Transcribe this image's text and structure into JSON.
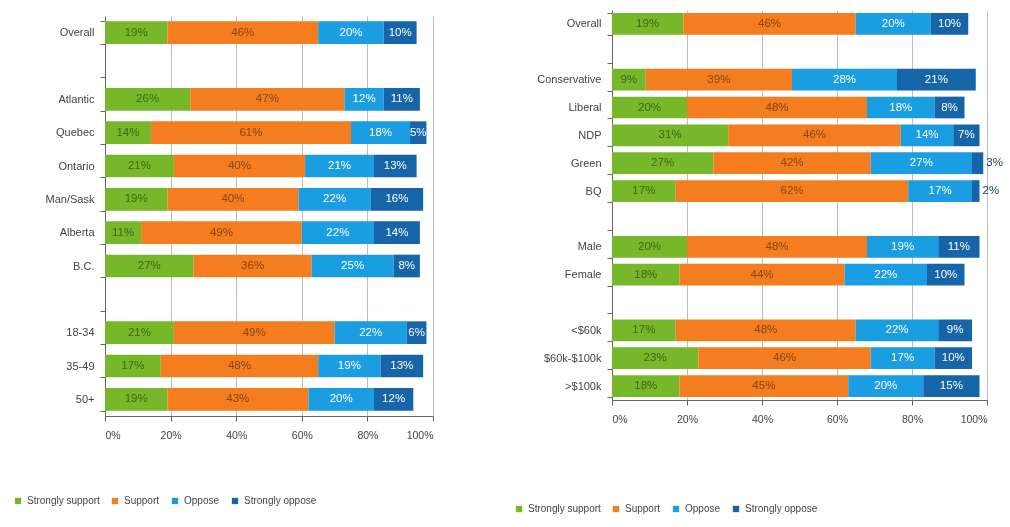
{
  "chart_data": [
    {
      "type": "bar",
      "orientation": "horizontal",
      "stacked": true,
      "categories": [
        "Overall",
        null,
        "Atlantic",
        "Quebec",
        "Ontario",
        "Man/Sask",
        "Alberta",
        "B.C.",
        null,
        "18-34",
        "35-49",
        "50+"
      ],
      "series": [
        {
          "name": "Strongly support",
          "color": "#77b82a",
          "values": [
            19,
            null,
            26,
            14,
            21,
            19,
            11,
            27,
            null,
            21,
            17,
            19
          ],
          "value_labels": [
            "19%",
            null,
            "26%",
            "14%",
            "21%",
            "19%",
            "11%",
            "27%",
            null,
            "21%",
            "17%",
            "19%"
          ]
        },
        {
          "name": "Support",
          "color": "#f47d20",
          "values": [
            46,
            null,
            47,
            61,
            40,
            40,
            49,
            36,
            null,
            49,
            48,
            43
          ],
          "value_labels": [
            "46%",
            null,
            "47%",
            "61%",
            "40%",
            "40%",
            "49%",
            "36%",
            null,
            "49%",
            "48%",
            "43%"
          ]
        },
        {
          "name": "Oppose",
          "color": "#1b9de2",
          "values": [
            20,
            null,
            12,
            18,
            21,
            22,
            22,
            25,
            null,
            22,
            19,
            20
          ],
          "value_labels": [
            "20%",
            null,
            "12%",
            "18%",
            "21%",
            "22%",
            "22%",
            "25%",
            null,
            "22%",
            "19%",
            "20%"
          ]
        },
        {
          "name": "Strongly oppose",
          "color": "#1565a8",
          "values": [
            10,
            null,
            11,
            5,
            13,
            16,
            14,
            8,
            null,
            6,
            13,
            12
          ],
          "value_labels": [
            "10%",
            null,
            "11%",
            "5%",
            "13%",
            "16%",
            "14%",
            "8%",
            null,
            "6%",
            "13%",
            "12%"
          ]
        }
      ],
      "xlim": [
        0,
        100
      ],
      "xticks": [
        {
          "value": 0,
          "label": "0%"
        },
        {
          "value": 20,
          "label": "20%"
        },
        {
          "value": 40,
          "label": "40%"
        },
        {
          "value": 60,
          "label": "60%"
        },
        {
          "value": 80,
          "label": "80%"
        },
        {
          "value": 100,
          "label": "100%"
        }
      ],
      "grid": "x",
      "legend": "bottom"
    },
    {
      "type": "bar",
      "orientation": "horizontal",
      "stacked": true,
      "categories": [
        "Overall",
        null,
        "Conservative",
        "Liberal",
        "NDP",
        "Green",
        "BQ",
        null,
        "Male",
        "Female",
        null,
        "<$60k",
        "$60k-$100k",
        ">$100k"
      ],
      "series": [
        {
          "name": "Strongly support",
          "color": "#77b82a",
          "values": [
            19,
            null,
            9,
            20,
            31,
            27,
            17,
            null,
            20,
            18,
            null,
            17,
            23,
            18
          ],
          "value_labels": [
            "19%",
            null,
            "9%",
            "20%",
            "31%",
            "27%",
            "17%",
            null,
            "20%",
            "18%",
            null,
            "17%",
            "23%",
            "18%"
          ]
        },
        {
          "name": "Support",
          "color": "#f47d20",
          "values": [
            46,
            null,
            39,
            48,
            46,
            42,
            62,
            null,
            48,
            44,
            null,
            48,
            46,
            45
          ],
          "value_labels": [
            "46%",
            null,
            "39%",
            "48%",
            "46%",
            "42%",
            "62%",
            null,
            "48%",
            "44%",
            null,
            "48%",
            "46%",
            "45%"
          ]
        },
        {
          "name": "Oppose",
          "color": "#1b9de2",
          "values": [
            20,
            null,
            28,
            18,
            14,
            27,
            17,
            null,
            19,
            22,
            null,
            22,
            17,
            20
          ],
          "value_labels": [
            "20%",
            null,
            "28%",
            "18%",
            "14%",
            "27%",
            "17%",
            null,
            "19%",
            "22%",
            null,
            "22%",
            "17%",
            "20%"
          ]
        },
        {
          "name": "Strongly oppose",
          "color": "#1565a8",
          "values": [
            10,
            null,
            21,
            8,
            7,
            3,
            2,
            null,
            11,
            10,
            null,
            9,
            10,
            15
          ],
          "value_labels": [
            "10%",
            null,
            "21%",
            "8%",
            "7%",
            "3%",
            "2%",
            null,
            "11%",
            "10%",
            null,
            "9%",
            "10%",
            "15%"
          ]
        }
      ],
      "xlim": [
        0,
        100
      ],
      "xticks": [
        {
          "value": 0,
          "label": "0%"
        },
        {
          "value": 20,
          "label": "20%"
        },
        {
          "value": 40,
          "label": "40%"
        },
        {
          "value": 60,
          "label": "60%"
        },
        {
          "value": 80,
          "label": "80%"
        },
        {
          "value": 100,
          "label": "100%"
        }
      ],
      "grid": "x",
      "legend": "bottom"
    }
  ]
}
